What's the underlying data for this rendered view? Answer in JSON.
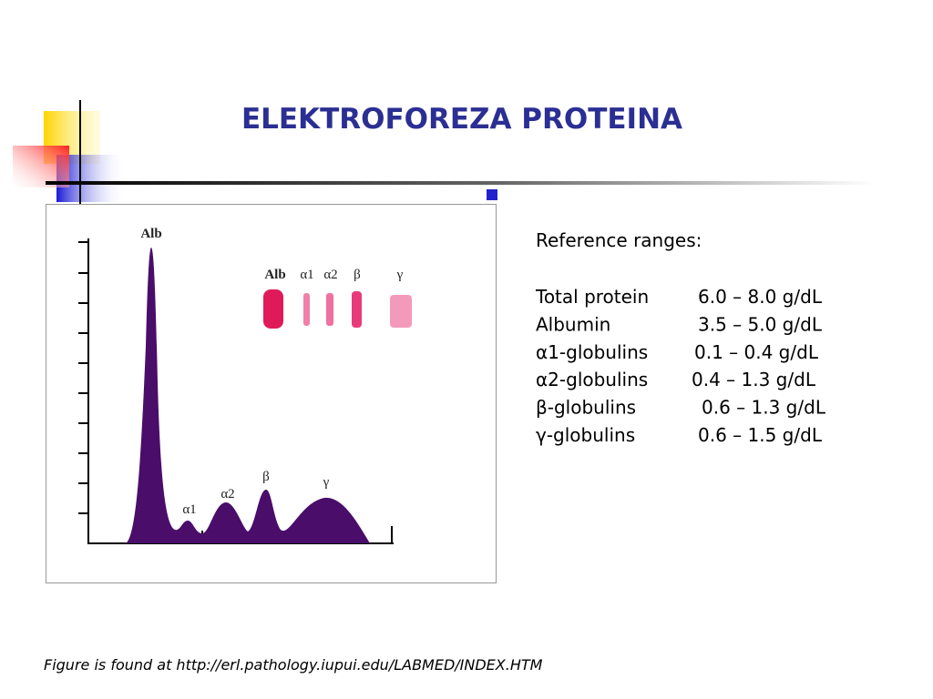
{
  "title": "ELEKTROFOREZA PROTEINA",
  "figure": {
    "peak_labels": [
      "Alb",
      "α1",
      "α2",
      "β",
      "γ"
    ],
    "band_labels": [
      "Alb",
      "α1",
      "α2",
      "β",
      "γ"
    ]
  },
  "reference": {
    "heading": "Reference ranges:",
    "rows": [
      [
        "Total protein",
        "6.0 – 8.0 g/dL"
      ],
      [
        "Albumin",
        "3.5 – 5.0 g/dL"
      ],
      [
        "α1-globulins",
        "0.1 – 0.4 g/dL"
      ],
      [
        "α2-globulins",
        "0.4 – 1.3 g/dL"
      ],
      [
        "β-globulins",
        "0.6 – 1.3 g/dL"
      ],
      [
        "γ-globulins",
        "0.6 – 1.5 g/dL"
      ]
    ]
  },
  "footer": "Figure is found at http://erl.pathology.iupui.edu/LABMED/INDEX.HTM"
}
